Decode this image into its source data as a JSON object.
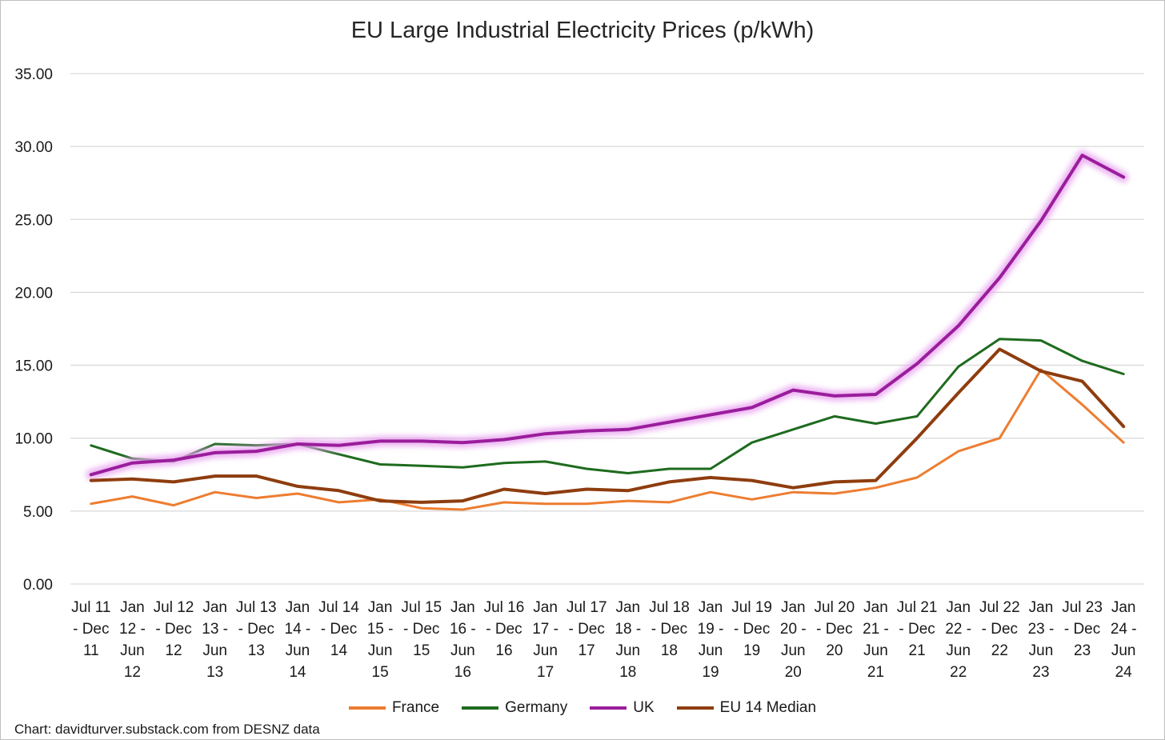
{
  "chart_data": {
    "type": "line",
    "title": "EU Large Industrial Electricity Prices (p/kWh)",
    "xlabel": "",
    "ylabel": "",
    "ylim": [
      0,
      35
    ],
    "yticks": [
      "0.00",
      "5.00",
      "10.00",
      "15.00",
      "20.00",
      "25.00",
      "30.00",
      "35.00"
    ],
    "grid": true,
    "legend_position": "bottom",
    "categories": [
      [
        "Jul 11",
        "- Dec",
        "11"
      ],
      [
        "Jan",
        "12 -",
        "Jun",
        "12"
      ],
      [
        "Jul 12",
        "- Dec",
        "12"
      ],
      [
        "Jan",
        "13 -",
        "Jun",
        "13"
      ],
      [
        "Jul 13",
        "- Dec",
        "13"
      ],
      [
        "Jan",
        "14 -",
        "Jun",
        "14"
      ],
      [
        "Jul 14",
        "- Dec",
        "14"
      ],
      [
        "Jan",
        "15 -",
        "Jun",
        "15"
      ],
      [
        "Jul 15",
        "- Dec",
        "15"
      ],
      [
        "Jan",
        "16 -",
        "Jun",
        "16"
      ],
      [
        "Jul 16",
        "- Dec",
        "16"
      ],
      [
        "Jan",
        "17 -",
        "Jun",
        "17"
      ],
      [
        "Jul 17",
        "- Dec",
        "17"
      ],
      [
        "Jan",
        "18 -",
        "Jun",
        "18"
      ],
      [
        "Jul 18",
        "- Dec",
        "18"
      ],
      [
        "Jan",
        "19 -",
        "Jun",
        "19"
      ],
      [
        "Jul 19",
        "- Dec",
        "19"
      ],
      [
        "Jan",
        "20 -",
        "Jun",
        "20"
      ],
      [
        "Jul 20",
        "- Dec",
        "20"
      ],
      [
        "Jan",
        "21 -",
        "Jun",
        "21"
      ],
      [
        "Jul 21",
        "- Dec",
        "21"
      ],
      [
        "Jan",
        "22 -",
        "Jun",
        "22"
      ],
      [
        "Jul 22",
        "- Dec",
        "22"
      ],
      [
        "Jan",
        "23 -",
        "Jun",
        "23"
      ],
      [
        "Jul 23",
        "- Dec",
        "23"
      ],
      [
        "Jan",
        "24 -",
        "Jun",
        "24"
      ]
    ],
    "series": [
      {
        "name": "France",
        "color": "#ed7d31",
        "width": 3,
        "glow": false,
        "values": [
          5.5,
          6.0,
          5.4,
          6.3,
          5.9,
          6.2,
          5.6,
          5.8,
          5.2,
          5.1,
          5.6,
          5.5,
          5.5,
          5.7,
          5.6,
          6.3,
          5.8,
          6.3,
          6.2,
          6.6,
          7.3,
          9.1,
          10.0,
          14.7,
          12.3,
          9.7
        ]
      },
      {
        "name": "Germany",
        "color": "#1e6b1e",
        "width": 3,
        "glow": false,
        "values": [
          9.5,
          8.6,
          8.4,
          9.6,
          9.5,
          9.6,
          8.9,
          8.2,
          8.1,
          8.0,
          8.3,
          8.4,
          7.9,
          7.6,
          7.9,
          7.9,
          9.7,
          10.6,
          11.5,
          11.0,
          11.5,
          14.9,
          16.8,
          16.7,
          15.3,
          14.4
        ]
      },
      {
        "name": "UK",
        "color": "#9a1d9c",
        "width": 4,
        "glow": true,
        "values": [
          7.5,
          8.3,
          8.5,
          9.0,
          9.1,
          9.6,
          9.5,
          9.8,
          9.8,
          9.7,
          9.9,
          10.3,
          10.5,
          10.6,
          11.1,
          11.6,
          12.1,
          13.3,
          12.9,
          13.0,
          15.1,
          17.7,
          21.0,
          24.9,
          29.4,
          27.9
        ]
      },
      {
        "name": "EU 14 Median",
        "color": "#8e3d0f",
        "width": 4,
        "glow": false,
        "values": [
          7.1,
          7.2,
          7.0,
          7.4,
          7.4,
          6.7,
          6.4,
          5.7,
          5.6,
          5.7,
          6.5,
          6.2,
          6.5,
          6.4,
          7.0,
          7.3,
          7.1,
          6.6,
          7.0,
          7.1,
          10.0,
          13.1,
          16.1,
          14.6,
          13.9,
          10.8
        ]
      }
    ]
  },
  "credit": "Chart: davidturver.substack.com from DESNZ data"
}
